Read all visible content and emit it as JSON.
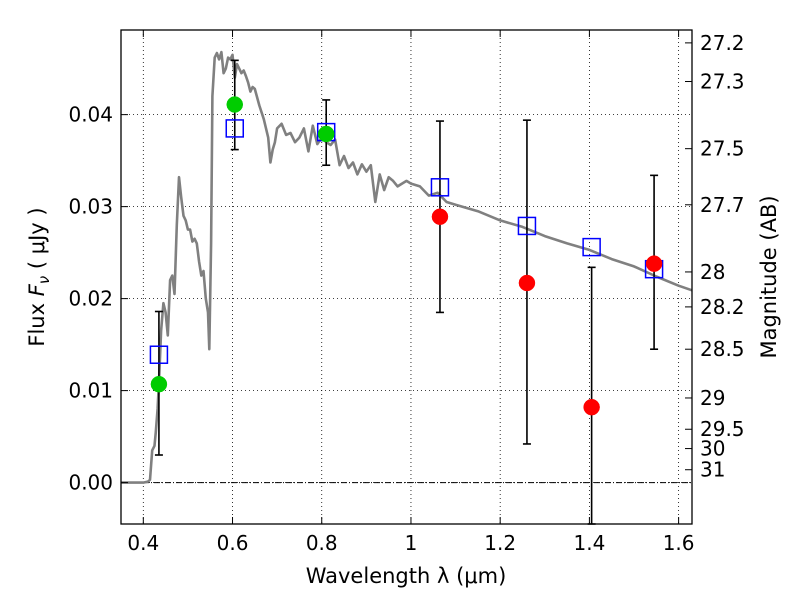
{
  "chart_data": {
    "type": "scatter",
    "xlabel": "Wavelength  λ (μm)",
    "ylabel_prefix": "Flux  ",
    "ylabel_symbol": "F",
    "ylabel_sub": "ν",
    "ylabel_suffix": "  ( μJy )",
    "y2label": "Magnitude (AB)",
    "xlim": [
      0.35,
      1.63
    ],
    "ylim": [
      -0.0045,
      0.0492
    ],
    "x_ticks": [
      0.4,
      0.6,
      0.8,
      1.0,
      1.2,
      1.4,
      1.6
    ],
    "x_tick_labels": [
      "0.4",
      "0.6",
      "0.8",
      "1",
      "1.2",
      "1.4",
      "1.6"
    ],
    "y_ticks": [
      0.0,
      0.01,
      0.02,
      0.03,
      0.04
    ],
    "y_tick_labels": [
      "0.00",
      "0.01",
      "0.02",
      "0.03",
      "0.04"
    ],
    "magnitude_ticks": [
      {
        "label": "27.2",
        "flux": 0.0478
      },
      {
        "label": "27.3",
        "flux": 0.0436
      },
      {
        "label": "27.5",
        "flux": 0.0363
      },
      {
        "label": "27.7",
        "flux": 0.0302
      },
      {
        "label": "28",
        "flux": 0.0229
      },
      {
        "label": "28.2",
        "flux": 0.0191
      },
      {
        "label": "28.5",
        "flux": 0.0145
      },
      {
        "label": "29",
        "flux": 0.0092
      },
      {
        "label": "29.5",
        "flux": 0.0058
      },
      {
        "label": "30",
        "flux": 0.0037
      },
      {
        "label": "31",
        "flux": 0.0014
      }
    ],
    "grid": true,
    "zero_line": true,
    "model_spectrum": {
      "color": "#808080",
      "x": [
        0.35,
        0.39,
        0.4,
        0.41,
        0.415,
        0.42,
        0.425,
        0.428,
        0.432,
        0.436,
        0.44,
        0.445,
        0.45,
        0.455,
        0.46,
        0.465,
        0.47,
        0.475,
        0.48,
        0.485,
        0.49,
        0.495,
        0.5,
        0.505,
        0.51,
        0.515,
        0.52,
        0.525,
        0.53,
        0.535,
        0.54,
        0.545,
        0.548,
        0.552,
        0.555,
        0.56,
        0.565,
        0.57,
        0.575,
        0.58,
        0.585,
        0.59,
        0.595,
        0.6,
        0.605,
        0.61,
        0.615,
        0.62,
        0.625,
        0.63,
        0.635,
        0.64,
        0.645,
        0.65,
        0.66,
        0.67,
        0.68,
        0.685,
        0.69,
        0.695,
        0.7,
        0.71,
        0.72,
        0.73,
        0.74,
        0.75,
        0.76,
        0.77,
        0.78,
        0.79,
        0.8,
        0.81,
        0.82,
        0.83,
        0.84,
        0.85,
        0.86,
        0.87,
        0.88,
        0.89,
        0.9,
        0.91,
        0.92,
        0.93,
        0.94,
        0.95,
        0.96,
        0.97,
        0.98,
        0.99,
        1.0,
        1.02,
        1.04,
        1.06,
        1.08,
        1.1,
        1.15,
        1.2,
        1.25,
        1.3,
        1.35,
        1.4,
        1.45,
        1.5,
        1.55,
        1.6,
        1.63
      ],
      "y": [
        0.0,
        0.0,
        0.0,
        0.0001,
        0.0003,
        0.0035,
        0.004,
        0.0055,
        0.008,
        0.012,
        0.0165,
        0.0195,
        0.0185,
        0.016,
        0.022,
        0.0225,
        0.0205,
        0.028,
        0.0332,
        0.031,
        0.029,
        0.0285,
        0.0275,
        0.0275,
        0.0262,
        0.0265,
        0.026,
        0.024,
        0.0225,
        0.023,
        0.02,
        0.0185,
        0.0145,
        0.026,
        0.042,
        0.0462,
        0.0467,
        0.046,
        0.0468,
        0.0445,
        0.045,
        0.0462,
        0.046,
        0.0465,
        0.044,
        0.0455,
        0.045,
        0.0445,
        0.0448,
        0.0442,
        0.0435,
        0.0425,
        0.043,
        0.0428,
        0.041,
        0.0395,
        0.0375,
        0.0348,
        0.0362,
        0.037,
        0.0385,
        0.039,
        0.0378,
        0.038,
        0.037,
        0.0375,
        0.0385,
        0.036,
        0.0388,
        0.0368,
        0.0375,
        0.037,
        0.0367,
        0.0373,
        0.0345,
        0.0355,
        0.0342,
        0.0348,
        0.0335,
        0.0346,
        0.0338,
        0.0345,
        0.0305,
        0.0335,
        0.0318,
        0.0332,
        0.0328,
        0.0322,
        0.0325,
        0.0328,
        0.0325,
        0.0322,
        0.0312,
        0.0315,
        0.0305,
        0.0302,
        0.0295,
        0.0285,
        0.0278,
        0.0268,
        0.026,
        0.0253,
        0.0243,
        0.0235,
        0.0224,
        0.0214,
        0.0209
      ]
    },
    "series": [
      {
        "marker": "open-square",
        "color": "#0000ff",
        "x": [
          0.435,
          0.605,
          0.81,
          1.065,
          1.26,
          1.405,
          1.545
        ],
        "y": [
          0.0139,
          0.0385,
          0.0381,
          0.0321,
          0.0279,
          0.0256,
          0.0232
        ]
      },
      {
        "marker": "circle",
        "color": "#00cc00",
        "x": [
          0.435,
          0.605,
          0.81
        ],
        "y": [
          0.0107,
          0.0411,
          0.0379
        ]
      },
      {
        "marker": "circle",
        "color": "#ff0000",
        "x": [
          1.065,
          1.26,
          1.405,
          1.545
        ],
        "y": [
          0.0289,
          0.0217,
          0.0082,
          0.0238
        ]
      }
    ],
    "error_bars": [
      {
        "x": 0.435,
        "low": 0.003,
        "high": 0.0186
      },
      {
        "x": 0.605,
        "low": 0.0362,
        "high": 0.0459
      },
      {
        "x": 0.81,
        "low": 0.0345,
        "high": 0.0416
      },
      {
        "x": 1.065,
        "low": 0.0185,
        "high": 0.0393
      },
      {
        "x": 1.26,
        "low": 0.0042,
        "high": 0.0394
      },
      {
        "x": 1.405,
        "low": -0.0045,
        "high": 0.0234
      },
      {
        "x": 1.545,
        "low": 0.0145,
        "high": 0.0334
      }
    ]
  }
}
